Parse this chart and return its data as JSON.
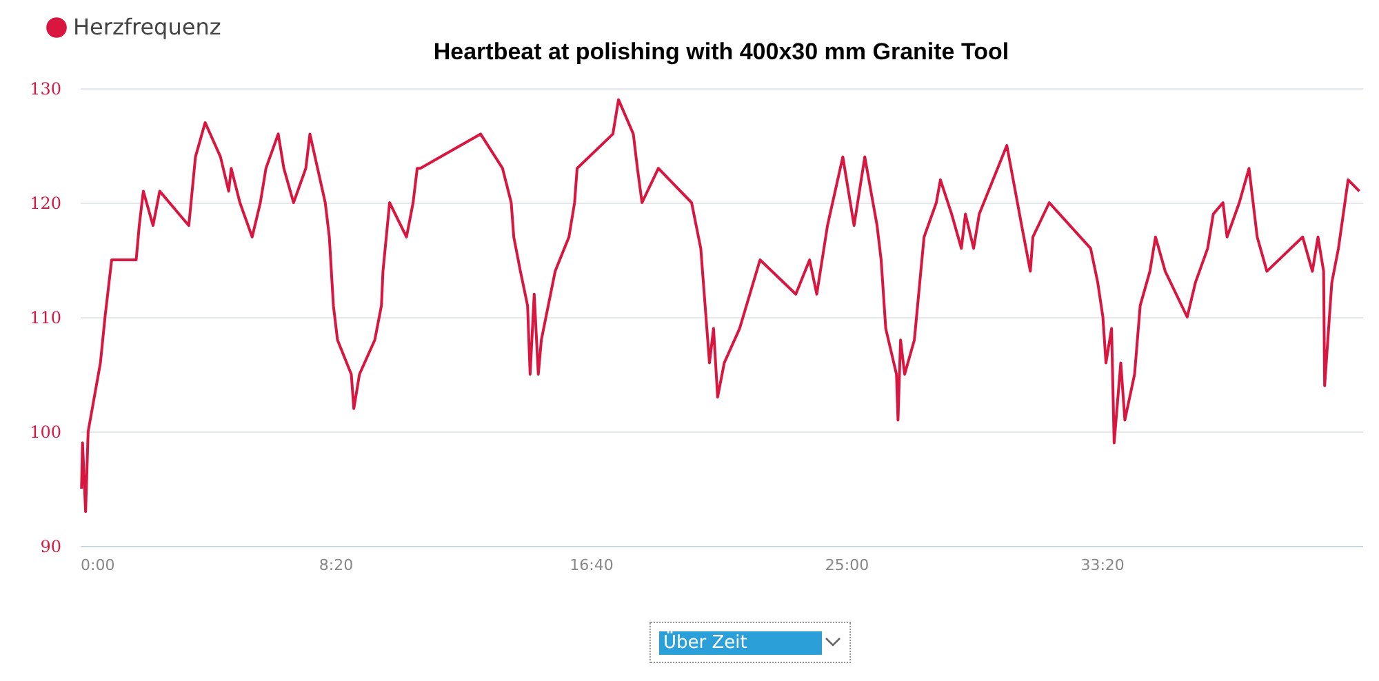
{
  "chart_data": {
    "type": "line",
    "title": "Heartbeat at polishing with 400x30 mm Granite Tool",
    "x": [
      3,
      5,
      11,
      16,
      40,
      49,
      62,
      110,
      116,
      124,
      143,
      156,
      213,
      226,
      245,
      275,
      291,
      296,
      313,
      337,
      353,
      364,
      388,
      399,
      418,
      442,
      450,
      480,
      488,
      496,
      504,
      531,
      536,
      547,
      577,
      590,
      593,
      606,
      639,
      652,
      660,
      666,
      784,
      827,
      844,
      849,
      862,
      876,
      881,
      889,
      897,
      903,
      930,
      957,
      968,
      973,
      1043,
      1054,
      1083,
      1091,
      1100,
      1132,
      1197,
      1215,
      1232,
      1240,
      1248,
      1261,
      1291,
      1331,
      1401,
      1428,
      1442,
      1463,
      1493,
      1515,
      1536,
      1560,
      1568,
      1577,
      1598,
      1601,
      1606,
      1614,
      1633,
      1652,
      1676,
      1684,
      1706,
      1725,
      1733,
      1749,
      1760,
      1814,
      1843,
      1860,
      1865,
      1897,
      1978,
      1992,
      2002,
      2008,
      2019,
      2024,
      2037,
      2045,
      2064,
      2075,
      2094,
      2105,
      2124,
      2167,
      2183,
      2207,
      2218,
      2237,
      2245,
      2269,
      2288,
      2304,
      2323,
      2393,
      2412,
      2423,
      2434,
      2436,
      2450,
      2463,
      2482,
      2504
    ],
    "series": [
      {
        "name": "Herzfrequenz",
        "color": "#d9163f",
        "values": [
          95,
          99,
          93,
          100,
          106,
          110,
          115,
          115,
          118,
          121,
          118,
          121,
          118,
          124,
          127,
          124,
          121,
          123,
          120,
          117,
          120,
          123,
          126,
          123,
          120,
          123,
          126,
          120,
          117,
          111,
          108,
          105,
          102,
          105,
          108,
          111,
          114,
          120,
          117,
          120,
          123,
          123,
          126,
          123,
          120,
          117,
          114,
          111,
          105,
          112,
          105,
          108,
          114,
          117,
          120,
          123,
          126,
          129,
          126,
          123,
          120,
          123,
          120,
          116,
          106,
          109,
          103,
          106,
          109,
          115,
          112,
          115,
          112,
          118,
          124,
          118,
          124,
          118,
          115,
          109,
          105,
          101,
          108,
          105,
          108,
          117,
          120,
          122,
          119,
          116,
          119,
          116,
          119,
          125,
          118,
          114,
          117,
          120,
          116,
          113,
          110,
          106,
          109,
          99,
          106,
          101,
          105,
          111,
          114,
          117,
          114,
          110,
          113,
          116,
          119,
          120,
          117,
          120,
          123,
          117,
          114,
          117,
          114,
          117,
          114,
          104,
          113,
          116,
          122,
          121
        ]
      }
    ],
    "xlim": [
      0,
      2510
    ],
    "xticks": [
      {
        "value": 0,
        "label": "0:00"
      },
      {
        "value": 500,
        "label": "8:20"
      },
      {
        "value": 1000,
        "label": "16:40"
      },
      {
        "value": 1500,
        "label": "25:00"
      },
      {
        "value": 2000,
        "label": "33:20"
      }
    ],
    "ylim": [
      90,
      130
    ],
    "yticks": [
      90,
      100,
      110,
      120,
      130
    ],
    "grid": "y",
    "legend": "top left",
    "marker": "none",
    "line_style": "solid",
    "annotations": [
      "Über Zeit"
    ]
  }
}
